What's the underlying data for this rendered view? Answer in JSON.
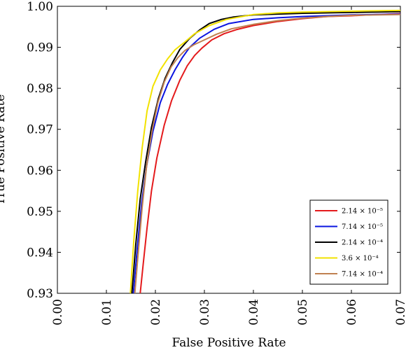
{
  "chart_data": {
    "type": "line",
    "xlabel": "False Positive Rate",
    "ylabel": "True Positive Rate",
    "xlim": [
      0,
      0.07
    ],
    "ylim": [
      0.93,
      1.0
    ],
    "xticks": [
      "0.00",
      "0.01",
      "0.02",
      "0.03",
      "0.04",
      "0.05",
      "0.06",
      "0.07"
    ],
    "yticks": [
      "0.93",
      "0.94",
      "0.95",
      "0.96",
      "0.97",
      "0.98",
      "0.99",
      "1.00"
    ],
    "legend_position": "bottom-right",
    "grid": false,
    "series": [
      {
        "name": "2.14 × 10⁻⁵",
        "color": "#e41a1c",
        "x": [
          0.0169,
          0.0175,
          0.0183,
          0.0192,
          0.0203,
          0.0218,
          0.0233,
          0.025,
          0.0265,
          0.028,
          0.0295,
          0.0315,
          0.034,
          0.0365,
          0.04,
          0.045,
          0.05,
          0.055,
          0.06,
          0.065,
          0.07
        ],
        "y": [
          0.93,
          0.937,
          0.946,
          0.955,
          0.963,
          0.971,
          0.977,
          0.982,
          0.9855,
          0.988,
          0.9898,
          0.9918,
          0.9933,
          0.9943,
          0.9953,
          0.9963,
          0.997,
          0.9975,
          0.9977,
          0.998,
          0.9982
        ]
      },
      {
        "name": "7.14 × 10⁻⁵",
        "color": "#0a14e0",
        "x": [
          0.0155,
          0.0163,
          0.0172,
          0.0182,
          0.0195,
          0.021,
          0.0225,
          0.024,
          0.0255,
          0.027,
          0.029,
          0.032,
          0.035,
          0.04,
          0.045,
          0.05,
          0.055,
          0.06,
          0.065,
          0.07
        ],
        "y": [
          0.93,
          0.941,
          0.952,
          0.961,
          0.9695,
          0.9765,
          0.981,
          0.9845,
          0.9875,
          0.99,
          0.9922,
          0.9944,
          0.9958,
          0.9968,
          0.9972,
          0.9975,
          0.9977,
          0.9979,
          0.998,
          0.9981
        ]
      },
      {
        "name": "2.14 × 10⁻⁴",
        "color": "#000000",
        "x": [
          0.0152,
          0.016,
          0.0169,
          0.018,
          0.0192,
          0.0206,
          0.022,
          0.0235,
          0.025,
          0.027,
          0.029,
          0.031,
          0.0335,
          0.036,
          0.04,
          0.045,
          0.05,
          0.06,
          0.07
        ],
        "y": [
          0.93,
          0.942,
          0.953,
          0.962,
          0.9705,
          0.9775,
          0.9825,
          0.9863,
          0.9895,
          0.9922,
          0.9942,
          0.9958,
          0.9968,
          0.9974,
          0.9979,
          0.9981,
          0.9983,
          0.9985,
          0.9987
        ]
      },
      {
        "name": "3.6 × 10⁻⁴",
        "color": "#f2e200",
        "x": [
          0.0149,
          0.0156,
          0.0164,
          0.0173,
          0.0183,
          0.0195,
          0.021,
          0.0225,
          0.024,
          0.026,
          0.028,
          0.031,
          0.0345,
          0.04,
          0.045,
          0.05,
          0.06,
          0.07
        ],
        "y": [
          0.93,
          0.943,
          0.955,
          0.9655,
          0.9745,
          0.9805,
          0.9845,
          0.9872,
          0.9894,
          0.9913,
          0.9933,
          0.9953,
          0.9968,
          0.998,
          0.9984,
          0.9986,
          0.9988,
          0.999
        ]
      },
      {
        "name": "7.14 × 10⁻⁴",
        "color": "#c08050",
        "x": [
          0.0158,
          0.0165,
          0.0173,
          0.0182,
          0.0193,
          0.0205,
          0.0218,
          0.0232,
          0.0246,
          0.026,
          0.0278,
          0.03,
          0.0325,
          0.0355,
          0.04,
          0.045,
          0.05,
          0.055,
          0.06,
          0.07
        ],
        "y": [
          0.93,
          0.94,
          0.951,
          0.961,
          0.9695,
          0.9765,
          0.9815,
          0.9852,
          0.9875,
          0.9892,
          0.9906,
          0.9918,
          0.9932,
          0.9945,
          0.9956,
          0.9965,
          0.9971,
          0.9975,
          0.9978,
          0.998
        ]
      }
    ]
  }
}
